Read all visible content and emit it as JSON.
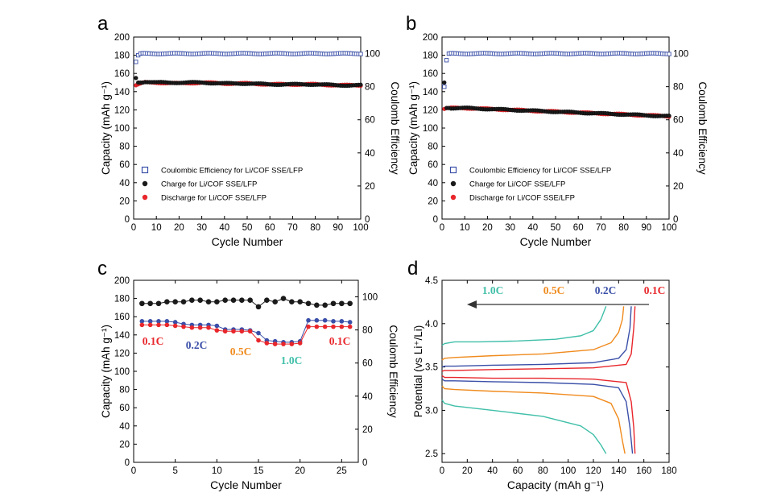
{
  "chart_data": [
    {
      "panel_label": "a",
      "type": "scatter",
      "xlabel": "Cycle Number",
      "ylabel_left": "Capacity (mAh g⁻¹)",
      "ylabel_right": "Coulomb Efficiency",
      "xlim": [
        0,
        100
      ],
      "ylim_left": [
        0,
        200
      ],
      "ylim_right": [
        0,
        110
      ],
      "xticks": [
        0,
        10,
        20,
        30,
        40,
        50,
        60,
        70,
        80,
        90,
        100
      ],
      "yticks_left": [
        0,
        20,
        40,
        60,
        80,
        100,
        120,
        140,
        160,
        180,
        200
      ],
      "yticks_right": [
        0,
        20,
        40,
        60,
        80,
        100
      ],
      "legend_position": "lower-left",
      "series": [
        {
          "name": "Coulombic Efficiency for Li/COF SSE/LFP",
          "axis": "right",
          "marker": "open-square",
          "color": "#3a4fa8",
          "x": [
            1,
            2,
            3,
            5,
            10,
            20,
            30,
            40,
            50,
            60,
            70,
            80,
            90,
            100
          ],
          "values": [
            95,
            99,
            100,
            100,
            100,
            100,
            100,
            100,
            100,
            100,
            100,
            100,
            100,
            100
          ]
        },
        {
          "name": "Charge for Li/COF SSE/LFP",
          "axis": "left",
          "marker": "filled-circle",
          "color": "#1a1a1a",
          "x": [
            1,
            2,
            3,
            5,
            10,
            20,
            30,
            40,
            50,
            60,
            70,
            80,
            90,
            100
          ],
          "values": [
            155,
            150,
            150,
            151,
            150,
            150,
            150,
            149,
            149,
            148,
            148,
            148,
            147,
            147
          ]
        },
        {
          "name": "Discharge for Li/COF SSE/LFP",
          "axis": "left",
          "marker": "filled-circle",
          "color": "#e8262b",
          "x": [
            1,
            2,
            3,
            5,
            10,
            20,
            30,
            40,
            50,
            60,
            70,
            80,
            90,
            100
          ],
          "values": [
            147,
            148,
            149,
            150,
            150,
            149,
            150,
            149,
            149,
            148,
            148,
            148,
            147,
            147
          ]
        }
      ]
    },
    {
      "panel_label": "b",
      "type": "scatter",
      "xlabel": "Cycle Number",
      "ylabel_left": "Capacity (mAh g⁻¹)",
      "ylabel_right": "Coulomb Efficiency",
      "xlim": [
        0,
        100
      ],
      "ylim_left": [
        0,
        200
      ],
      "ylim_right": [
        0,
        110
      ],
      "xticks": [
        0,
        10,
        20,
        30,
        40,
        50,
        60,
        70,
        80,
        90,
        100
      ],
      "yticks_left": [
        0,
        20,
        40,
        60,
        80,
        100,
        120,
        140,
        160,
        180,
        200
      ],
      "yticks_right": [
        0,
        20,
        40,
        60,
        80,
        100
      ],
      "legend_position": "lower-left",
      "series": [
        {
          "name": "Coulombic Efficiency for Li/COF SSE/LFP",
          "axis": "right",
          "marker": "open-square",
          "color": "#3a4fa8",
          "x": [
            1,
            2,
            3,
            5,
            10,
            20,
            30,
            40,
            50,
            60,
            70,
            80,
            90,
            100
          ],
          "values": [
            80,
            96,
            100,
            100,
            100,
            100,
            100,
            100,
            100,
            100,
            100,
            100,
            100,
            100
          ]
        },
        {
          "name": "Charge for Li/COF SSE/LFP",
          "axis": "left",
          "marker": "filled-circle",
          "color": "#1a1a1a",
          "x": [
            1,
            2,
            5,
            10,
            20,
            30,
            40,
            50,
            60,
            70,
            80,
            90,
            100
          ],
          "values": [
            150,
            122,
            122,
            122,
            121,
            120,
            119,
            118,
            117,
            116,
            115,
            114,
            113
          ]
        },
        {
          "name": "Discharge for Li/COF SSE/LFP",
          "axis": "left",
          "marker": "filled-circle",
          "color": "#e8262b",
          "x": [
            1,
            2,
            5,
            10,
            20,
            30,
            40,
            50,
            60,
            70,
            80,
            90,
            100
          ],
          "values": [
            121,
            122,
            122,
            122,
            121,
            120,
            119,
            118,
            117,
            116,
            115,
            114,
            113
          ]
        }
      ]
    },
    {
      "panel_label": "c",
      "type": "line",
      "xlabel": "Cycle Number",
      "ylabel_left": "Capacity (mAh g⁻¹)",
      "ylabel_right": "Coulomb Efficiency",
      "xlim": [
        0,
        27
      ],
      "ylim_left": [
        0,
        200
      ],
      "ylim_right": [
        0,
        110
      ],
      "xticks": [
        0,
        5,
        10,
        15,
        20,
        25
      ],
      "yticks_left": [
        0,
        20,
        40,
        60,
        80,
        100,
        120,
        140,
        160,
        180,
        200
      ],
      "yticks_right": [
        0,
        20,
        40,
        60,
        80,
        100
      ],
      "x": [
        1,
        2,
        3,
        4,
        5,
        6,
        7,
        8,
        9,
        10,
        11,
        12,
        13,
        14,
        15,
        16,
        17,
        18,
        19,
        20,
        21,
        22,
        23,
        24,
        25,
        26
      ],
      "series": [
        {
          "axis": "right",
          "color": "#1a1a1a",
          "values": [
            96,
            96,
            96,
            97,
            97,
            97,
            98,
            98,
            97,
            97,
            98,
            98,
            98,
            98,
            94,
            98,
            97,
            99,
            97,
            97,
            96,
            95,
            95,
            96,
            96,
            96
          ]
        },
        {
          "axis": "left",
          "color": "#3a4fa8",
          "values": [
            155,
            155,
            155,
            155,
            154,
            152,
            151,
            151,
            151,
            150,
            146,
            146,
            146,
            145,
            142,
            134,
            133,
            132,
            132,
            133,
            156,
            156,
            156,
            155,
            155,
            154
          ]
        },
        {
          "axis": "left",
          "color": "#e8262b",
          "values": [
            151,
            151,
            151,
            151,
            150,
            149,
            148,
            148,
            148,
            145,
            144,
            144,
            144,
            144,
            134,
            131,
            130,
            130,
            130,
            131,
            149,
            149,
            149,
            149,
            149,
            149
          ]
        }
      ],
      "annotations": [
        {
          "text": "0.1C",
          "color": "#e8262b"
        },
        {
          "text": "0.2C",
          "color": "#3a4fa8"
        },
        {
          "text": "0.5C",
          "color": "#f08a1c"
        },
        {
          "text": "1.0C",
          "color": "#3fbfa8"
        },
        {
          "text": "0.1C",
          "color": "#e8262b"
        }
      ]
    },
    {
      "panel_label": "d",
      "type": "line",
      "xlabel": "Capacity (mAh g⁻¹)",
      "ylabel": "Potential (vs Li⁺/Li)",
      "xlim": [
        0,
        180
      ],
      "ylim": [
        2.4,
        4.5
      ],
      "xticks": [
        0,
        20,
        40,
        60,
        80,
        100,
        120,
        140,
        160,
        180
      ],
      "yticks": [
        2.5,
        3.0,
        3.5,
        4.0,
        4.5
      ],
      "series": [
        {
          "name": "1.0C",
          "color": "#3fbfa8",
          "charge": {
            "x": [
              0,
              2,
              10,
              30,
              60,
              90,
              110,
              120,
              126,
              130
            ],
            "y": [
              3.75,
              3.77,
              3.79,
              3.79,
              3.8,
              3.82,
              3.86,
              3.92,
              4.05,
              4.2
            ]
          },
          "discharge": {
            "x": [
              0,
              2,
              10,
              40,
              80,
              110,
              120,
              126,
              130
            ],
            "y": [
              3.12,
              3.08,
              3.05,
              3.0,
              2.93,
              2.82,
              2.72,
              2.6,
              2.5
            ]
          }
        },
        {
          "name": "0.5C",
          "color": "#f08a1c",
          "charge": {
            "x": [
              0,
              2,
              10,
              40,
              80,
              120,
              134,
              140,
              143,
              144
            ],
            "y": [
              3.58,
              3.6,
              3.61,
              3.63,
              3.65,
              3.7,
              3.78,
              3.9,
              4.05,
              4.2
            ]
          },
          "discharge": {
            "x": [
              0,
              2,
              10,
              40,
              80,
              120,
              134,
              140,
              143,
              145
            ],
            "y": [
              3.28,
              3.25,
              3.24,
              3.22,
              3.2,
              3.16,
              3.08,
              2.9,
              2.65,
              2.5
            ]
          }
        },
        {
          "name": "0.2C",
          "color": "#3a4fa8",
          "charge": {
            "x": [
              0,
              2,
              10,
              40,
              80,
              120,
              140,
              146,
              149,
              150
            ],
            "y": [
              3.5,
              3.51,
              3.51,
              3.52,
              3.53,
              3.55,
              3.6,
              3.7,
              3.95,
              4.2
            ]
          },
          "discharge": {
            "x": [
              0,
              2,
              10,
              40,
              80,
              120,
              140,
              146,
              149,
              151
            ],
            "y": [
              3.36,
              3.34,
              3.34,
              3.33,
              3.32,
              3.3,
              3.26,
              3.1,
              2.8,
              2.5
            ]
          }
        },
        {
          "name": "0.1C",
          "color": "#e8262b",
          "charge": {
            "x": [
              0,
              2,
              10,
              40,
              80,
              120,
              146,
              150,
              152,
              153
            ],
            "y": [
              3.45,
              3.46,
              3.46,
              3.47,
              3.48,
              3.49,
              3.53,
              3.65,
              3.95,
              4.2
            ]
          },
          "discharge": {
            "x": [
              0,
              2,
              10,
              40,
              80,
              120,
              146,
              150,
              152,
              153
            ],
            "y": [
              3.4,
              3.38,
              3.38,
              3.37,
              3.37,
              3.36,
              3.32,
              3.1,
              2.8,
              2.5
            ]
          }
        }
      ]
    }
  ]
}
